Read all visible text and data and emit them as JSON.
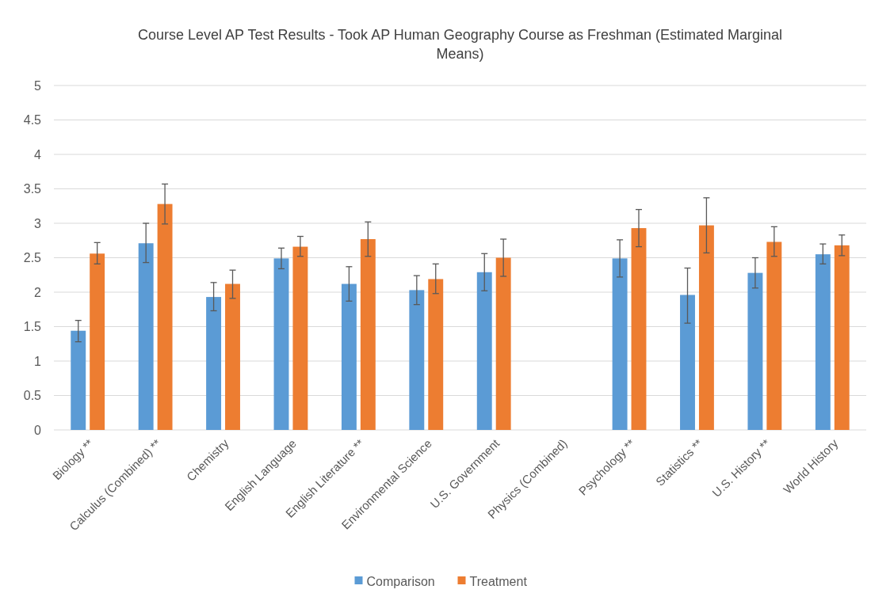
{
  "chart_data": {
    "type": "bar",
    "title": "Course Level AP Test Results - Took AP Human Geography Course as Freshman  (Estimated Marginal Means)",
    "categories": [
      "Biology **",
      "Calculus (Combined) **",
      "Chemistry",
      "English Language",
      "English Literature **",
      "Environmental Science",
      "U.S. Government",
      "Physics (Combined)",
      "Psychology **",
      "Statistics **",
      "U.S. History **",
      "World History"
    ],
    "series": [
      {
        "name": "Comparison",
        "color": "#5b9bd5",
        "values": [
          1.44,
          2.71,
          1.93,
          2.49,
          2.12,
          2.03,
          2.29,
          null,
          2.49,
          1.96,
          2.28,
          2.55
        ],
        "errors": [
          [
            1.28,
            1.59
          ],
          [
            2.43,
            3.0
          ],
          [
            1.73,
            2.14
          ],
          [
            2.34,
            2.64
          ],
          [
            1.87,
            2.37
          ],
          [
            1.82,
            2.24
          ],
          [
            2.02,
            2.56
          ],
          null,
          [
            2.22,
            2.76
          ],
          [
            1.55,
            2.35
          ],
          [
            2.06,
            2.5
          ],
          [
            2.41,
            2.7
          ]
        ]
      },
      {
        "name": "Treatment",
        "color": "#ed7d31",
        "values": [
          2.56,
          3.28,
          2.12,
          2.66,
          2.77,
          2.19,
          2.5,
          null,
          2.93,
          2.97,
          2.73,
          2.68
        ],
        "errors": [
          [
            2.41,
            2.72
          ],
          [
            2.99,
            3.57
          ],
          [
            1.91,
            2.32
          ],
          [
            2.52,
            2.81
          ],
          [
            2.52,
            3.02
          ],
          [
            1.98,
            2.41
          ],
          [
            2.23,
            2.77
          ],
          null,
          [
            2.66,
            3.2
          ],
          [
            2.57,
            3.37
          ],
          [
            2.52,
            2.95
          ],
          [
            2.53,
            2.83
          ]
        ]
      }
    ],
    "ylim": [
      0,
      5
    ],
    "yticks": [
      0,
      0.5,
      1,
      1.5,
      2,
      2.5,
      3,
      3.5,
      4,
      4.5,
      5
    ],
    "grid": "y",
    "legend": "bottom"
  }
}
